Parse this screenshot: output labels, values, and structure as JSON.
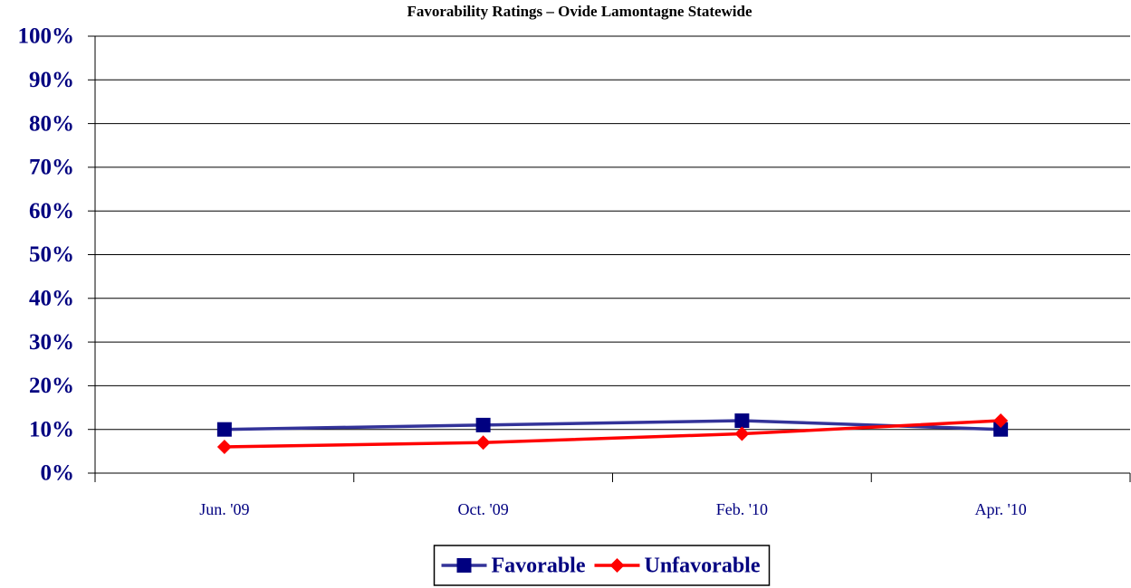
{
  "chart_data": {
    "type": "line",
    "title": "Favorability Ratings – Ovide Lamontagne Statewide",
    "categories": [
      "Jun. '09",
      "Oct. '09",
      "Feb. '10",
      "Apr. '10"
    ],
    "series": [
      {
        "name": "Favorable",
        "color": "#000080",
        "line_color": "#333399",
        "marker": "square",
        "values": [
          10,
          11,
          12,
          10
        ]
      },
      {
        "name": "Unfavorable",
        "color": "#ff0000",
        "line_color": "#ff0000",
        "marker": "diamond",
        "values": [
          6,
          7,
          9,
          12
        ]
      }
    ],
    "ylim": [
      0,
      100
    ],
    "yticks": [
      {
        "value": 0,
        "label": "0%"
      },
      {
        "value": 10,
        "label": "10%"
      },
      {
        "value": 20,
        "label": "20%"
      },
      {
        "value": 30,
        "label": "30%"
      },
      {
        "value": 40,
        "label": "40%"
      },
      {
        "value": 50,
        "label": "50%"
      },
      {
        "value": 60,
        "label": "60%"
      },
      {
        "value": 70,
        "label": "70%"
      },
      {
        "value": 80,
        "label": "80%"
      },
      {
        "value": 90,
        "label": "90%"
      },
      {
        "value": 100,
        "label": "100%"
      }
    ],
    "grid": true,
    "legend": "bottom"
  }
}
